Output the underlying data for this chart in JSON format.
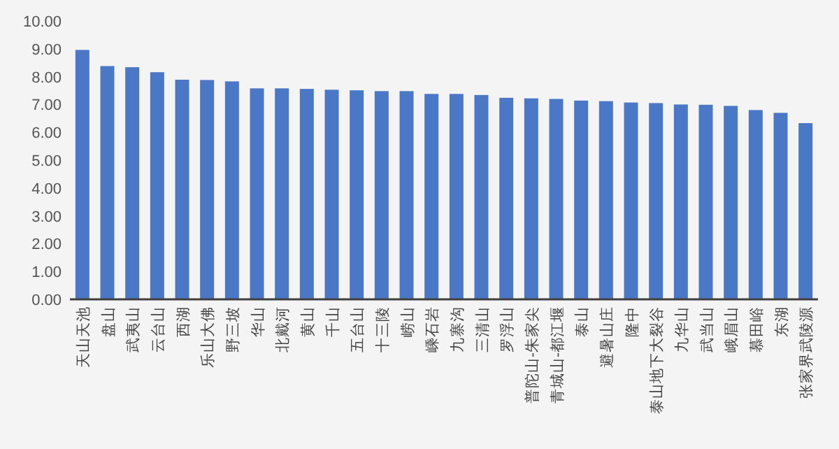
{
  "chart_data": {
    "type": "bar",
    "categories": [
      "天山天池",
      "盘山",
      "武夷山",
      "云台山",
      "西湖",
      "乐山大佛",
      "野三坡",
      "华山",
      "北戴河",
      "黄山",
      "千山",
      "五台山",
      "十三陵",
      "崂山",
      "嵊石岩",
      "九寨沟",
      "三清山",
      "罗浮山",
      "普陀山-朱家尖",
      "青城山-都江堰",
      "泰山",
      "避暑山庄",
      "隆中",
      "泰山地下大裂谷",
      "九华山",
      "武当山",
      "峨眉山",
      "慕田峪",
      "东湖",
      "张家界武陵源"
    ],
    "values": [
      8.96,
      8.38,
      8.34,
      8.16,
      7.89,
      7.88,
      7.83,
      7.58,
      7.58,
      7.56,
      7.53,
      7.51,
      7.48,
      7.48,
      7.38,
      7.38,
      7.34,
      7.24,
      7.22,
      7.2,
      7.14,
      7.12,
      7.07,
      7.05,
      7.0,
      6.99,
      6.95,
      6.8,
      6.7,
      6.33
    ],
    "color": "#4a78c6",
    "ylim": [
      0,
      10
    ],
    "yticks": [
      {
        "value": 0,
        "label": "0.00"
      },
      {
        "value": 1,
        "label": "1.00"
      },
      {
        "value": 2,
        "label": "2.00"
      },
      {
        "value": 3,
        "label": "3.00"
      },
      {
        "value": 4,
        "label": "4.00"
      },
      {
        "value": 5,
        "label": "5.00"
      },
      {
        "value": 6,
        "label": "6.00"
      },
      {
        "value": 7,
        "label": "7.00"
      },
      {
        "value": 8,
        "label": "8.00"
      },
      {
        "value": 9,
        "label": "9.00"
      },
      {
        "value": 10,
        "label": "10.00"
      }
    ],
    "grid": false
  }
}
